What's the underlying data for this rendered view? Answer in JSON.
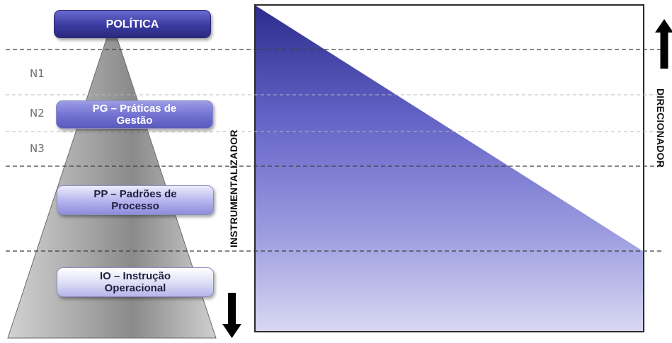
{
  "levels": {
    "politica": "POLÍTICA",
    "pg": "PG – Práticas de Gestão",
    "pp": "PP – Padrões de Processo",
    "io": "IO – Instrução Operacional"
  },
  "zone_labels": [
    "N1",
    "N2",
    "N3"
  ],
  "axis_labels": {
    "left": "INSTRUMENTALIZADOR",
    "right": "DIRECIONADOR"
  },
  "colors": {
    "dark_blue": "#2a2a80",
    "mid_blue": "#6c6cd0",
    "light_blue": "#d6d6f2",
    "pyramid_gray": "#9a9a9a",
    "dashed_line": "#444444"
  }
}
